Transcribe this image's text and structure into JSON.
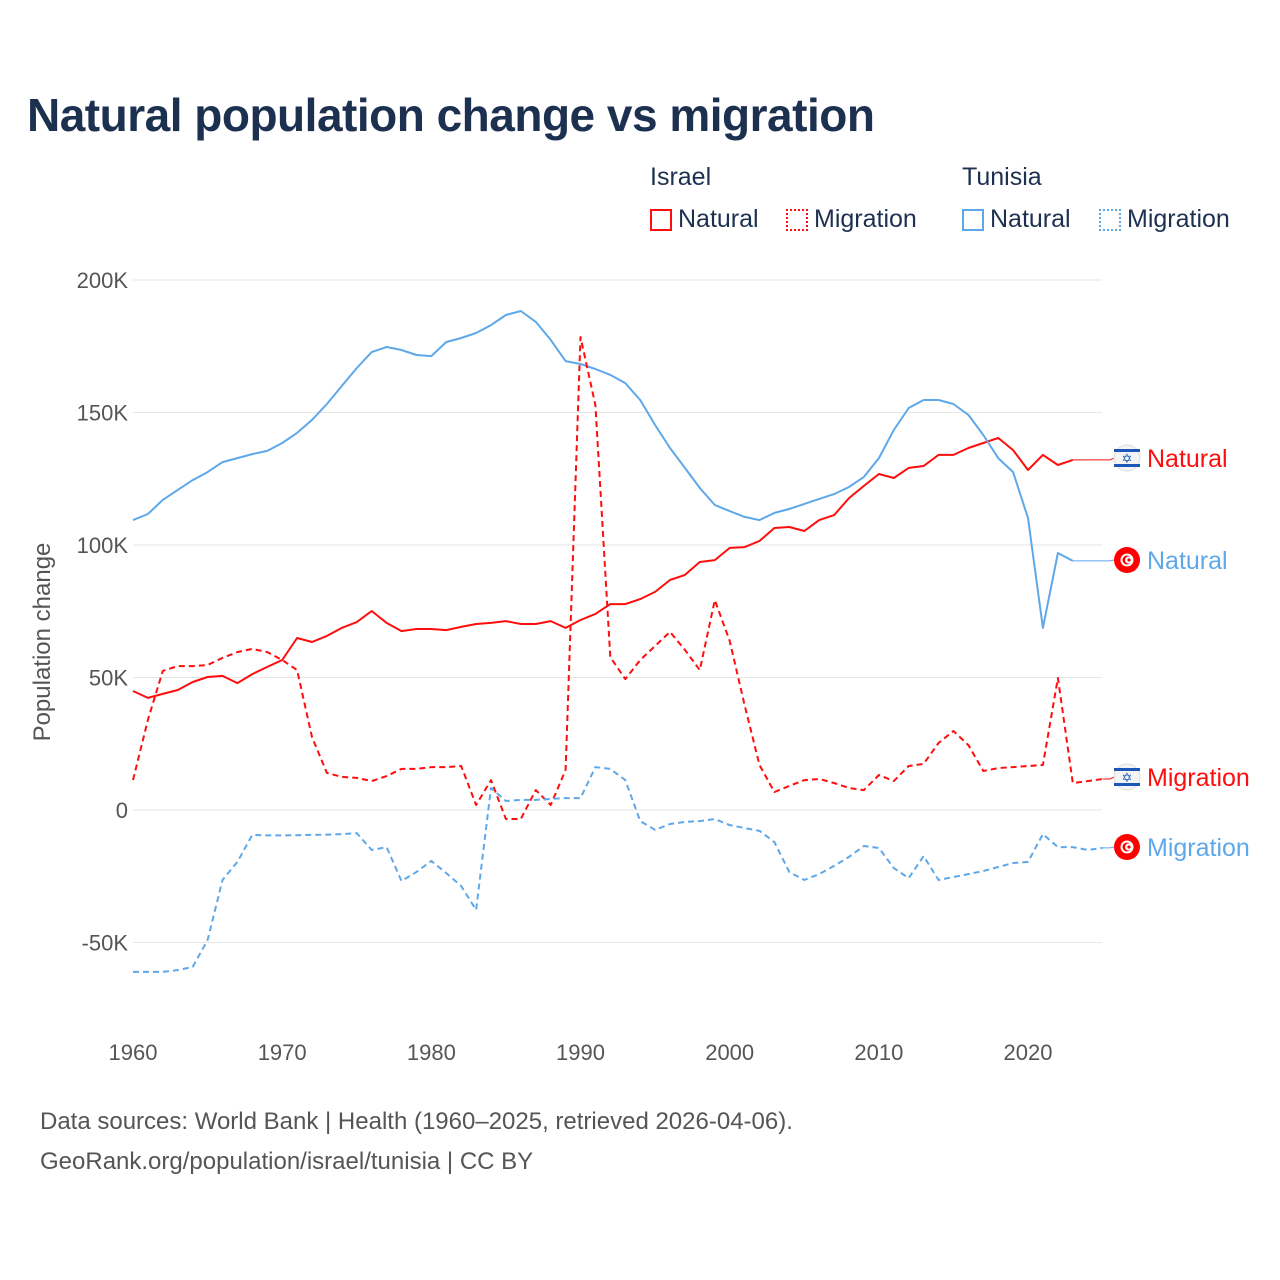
{
  "title": "Natural population change vs migration",
  "legend": {
    "groups": [
      {
        "name": "Israel",
        "items": [
          "Natural",
          "Migration"
        ]
      },
      {
        "name": "Tunisia",
        "items": [
          "Natural",
          "Migration"
        ]
      }
    ]
  },
  "footer": {
    "line1": "Data sources: World Bank | Health (1960–2025, retrieved 2026-04-06).",
    "line2": "GeoRank.org/population/israel/tunisia | CC BY"
  },
  "colors": {
    "israel": "#ff0d0d",
    "tunisia": "#5ea8ea",
    "title": "#1c3050"
  },
  "chart_data": {
    "type": "line",
    "title": "Natural population change vs migration",
    "xlabel": "",
    "ylabel": "Population change",
    "unit": "thousands",
    "xlim": [
      1960,
      2025
    ],
    "ylim": [
      -75,
      200
    ],
    "x_ticks": [
      1960,
      1970,
      1980,
      1990,
      2000,
      2010,
      2020
    ],
    "x_tick_labels": [
      "1960",
      "1970",
      "1980",
      "1990",
      "2000",
      "2010",
      "2020"
    ],
    "y_ticks": [
      -50,
      0,
      50,
      100,
      150,
      200
    ],
    "y_tick_labels": [
      "-50K",
      "0",
      "50K",
      "100K",
      "150K",
      "200K"
    ],
    "grid": true,
    "legend_position": "top-right",
    "series": [
      {
        "name": "Israel Natural",
        "country": "Israel",
        "kind": "Natural",
        "label": "Natural",
        "color": "#ff0d0d",
        "dash": false,
        "start": 1960,
        "values": [
          44.9,
          42.3,
          43.8,
          45.3,
          48.3,
          50.2,
          50.6,
          47.9,
          51.3,
          54,
          56.6,
          64.9,
          63.4,
          65.7,
          68.7,
          70.9,
          75.1,
          70.6,
          67.5,
          68.3,
          68.3,
          67.9,
          69.1,
          70.2,
          70.6,
          71.3,
          70.2,
          70.2,
          71.3,
          68.7,
          71.7,
          74,
          77.7,
          77.7,
          79.6,
          82.3,
          86.8,
          88.7,
          93.6,
          94.3,
          98.9,
          99.2,
          101.5,
          106.4,
          106.8,
          105.3,
          109.4,
          111.3,
          117.7,
          122.3,
          126.8,
          125.3,
          129.1,
          129.8,
          134,
          134,
          136.6,
          138.5,
          140.4,
          135.8,
          128.3,
          134,
          130.2,
          132.1
        ]
      },
      {
        "name": "Tunisia Natural",
        "country": "Tunisia",
        "kind": "Natural",
        "label": "Natural",
        "color": "#5ea8ea",
        "dash": false,
        "start": 1960,
        "values": [
          109.4,
          111.7,
          117,
          120.8,
          124.5,
          127.5,
          131.3,
          132.8,
          134.3,
          135.5,
          138.5,
          142.3,
          147.2,
          153.2,
          160,
          166.8,
          172.8,
          174.7,
          173.6,
          171.7,
          171.3,
          176.6,
          178.1,
          180,
          183,
          186.8,
          188.3,
          184.2,
          177.4,
          169.4,
          168.3,
          166.4,
          164.2,
          161.1,
          154.7,
          145.3,
          136.6,
          129.1,
          121.5,
          115.1,
          112.8,
          110.6,
          109.4,
          112.1,
          113.6,
          115.5,
          117.4,
          119.2,
          121.9,
          125.7,
          132.8,
          143.4,
          151.7,
          154.7,
          154.7,
          153.2,
          149.1,
          141.5,
          132.8,
          127.5,
          110.2,
          68.7,
          97,
          94
        ]
      },
      {
        "name": "Israel Migration",
        "country": "Israel",
        "kind": "Migration",
        "label": "Migration",
        "color": "#ff0d0d",
        "dash": true,
        "start": 1960,
        "values": [
          11.3,
          34,
          52.5,
          54.3,
          54.3,
          54.7,
          57.4,
          59.6,
          60.8,
          59.6,
          56.6,
          52.8,
          27.5,
          14,
          12.5,
          12.1,
          10.9,
          12.8,
          15.5,
          15.5,
          16.2,
          16.2,
          16.6,
          1.9,
          11.3,
          -3.4,
          -3.4,
          7.5,
          1.9,
          15.1,
          178.5,
          152.8,
          57.7,
          49.4,
          56.6,
          61.9,
          67.2,
          60.4,
          52.8,
          79.2,
          63.8,
          39.6,
          17,
          6.8,
          9.1,
          11.3,
          11.7,
          10.2,
          8.3,
          7.5,
          13.2,
          10.9,
          16.6,
          17.4,
          25.3,
          29.8,
          24.5,
          14.7,
          15.8,
          16.2,
          16.6,
          17,
          49.8,
          10.2,
          10.9,
          11.7
        ]
      },
      {
        "name": "Tunisia Migration",
        "country": "Tunisia",
        "kind": "Migration",
        "label": "Migration",
        "color": "#5ea8ea",
        "dash": true,
        "start": 1960,
        "values": [
          -61.1,
          -61.1,
          -61.1,
          -60.4,
          -59.2,
          -49.1,
          -26.4,
          -19.6,
          -9.4,
          -9.6,
          -9.6,
          -9.5,
          -9.4,
          -9.3,
          -9.1,
          -8.7,
          -15.1,
          -14,
          -26.8,
          -23.4,
          -19.2,
          -23.8,
          -28.7,
          -37.7,
          8.3,
          3.4,
          3.8,
          3.8,
          4.2,
          4.5,
          4.5,
          16.2,
          15.5,
          11.3,
          -4.2,
          -7.5,
          -5.3,
          -4.5,
          -4.2,
          -3.4,
          -5.7,
          -6.8,
          -7.9,
          -12.1,
          -23.4,
          -26.4,
          -24.2,
          -21.1,
          -17.7,
          -13.6,
          -14.3,
          -21.9,
          -25.7,
          -17.4,
          -26.4,
          -25.3,
          -24.2,
          -23,
          -21.5,
          -20,
          -19.6,
          -9.1,
          -14,
          -14,
          -15.1,
          -14.3
        ]
      }
    ]
  }
}
